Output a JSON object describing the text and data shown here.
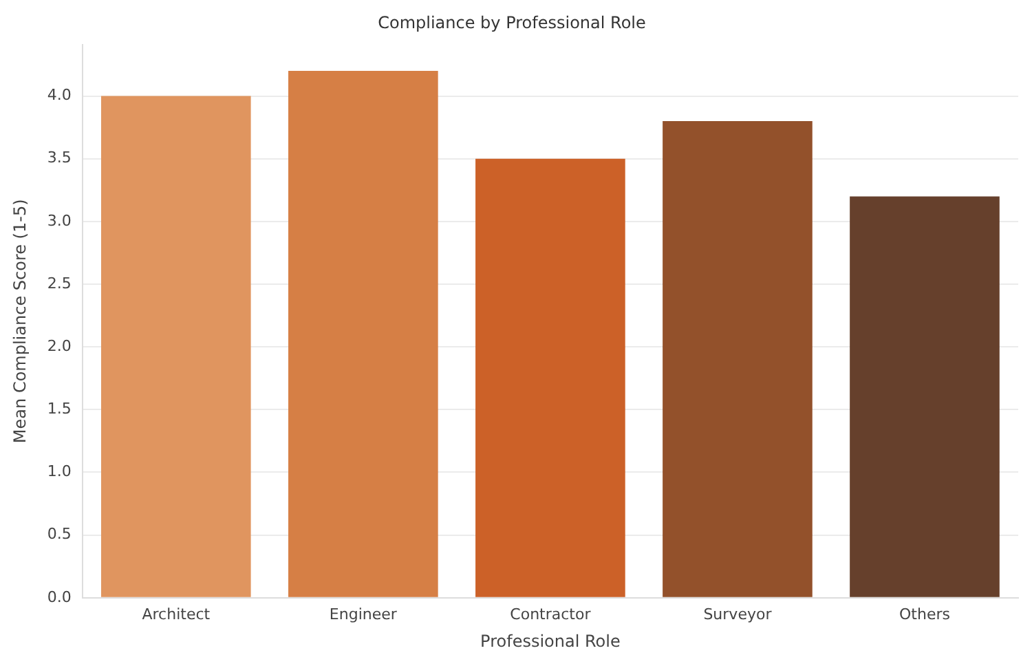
{
  "chart_data": {
    "type": "bar",
    "title": "Compliance by Professional Role",
    "xlabel": "Professional Role",
    "ylabel": "Mean Compliance Score (1-5)",
    "categories": [
      "Architect",
      "Engineer",
      "Contractor",
      "Surveyor",
      "Others"
    ],
    "values": [
      4.0,
      4.2,
      3.5,
      3.8,
      3.2
    ],
    "colors": [
      "#e0955f",
      "#d67f45",
      "#cc6128",
      "#93512b",
      "#66402c"
    ],
    "ylim": [
      0,
      4.41
    ],
    "yticks": [
      {
        "value": 0,
        "label": "0.0"
      },
      {
        "value": 0.5,
        "label": "0.5"
      },
      {
        "value": 1,
        "label": "1.0"
      },
      {
        "value": 1.5,
        "label": "1.5"
      },
      {
        "value": 2,
        "label": "2.0"
      },
      {
        "value": 2.5,
        "label": "2.5"
      },
      {
        "value": 3,
        "label": "3.0"
      },
      {
        "value": 3.5,
        "label": "3.5"
      },
      {
        "value": 4,
        "label": "4.0"
      }
    ],
    "grid": "y"
  }
}
